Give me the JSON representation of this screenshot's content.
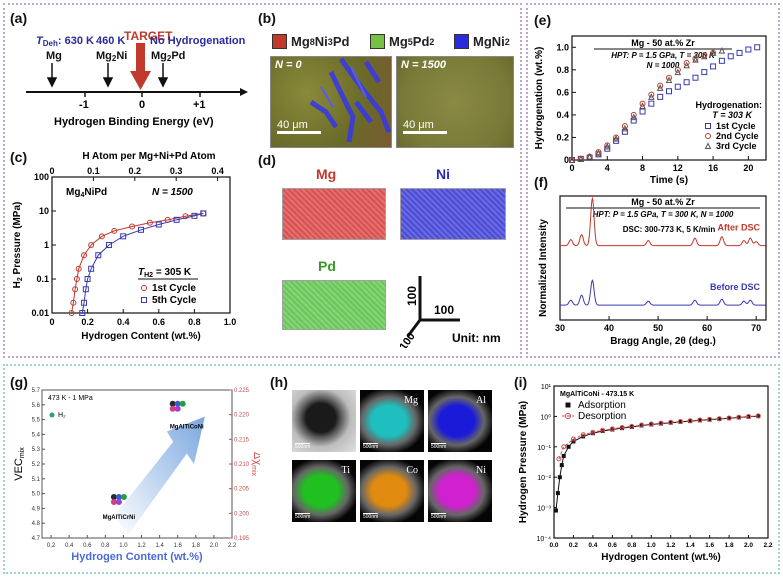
{
  "panel_labels": {
    "a": "(a)",
    "b": "(b)",
    "c": "(c)",
    "d": "(d)",
    "e": "(e)",
    "f": "(f)",
    "g": "(g)",
    "h": "(h)",
    "i": "(i)"
  },
  "panel_a": {
    "target": "TARGET",
    "tdeh_prefix": "T",
    "tdeh_sub": "Deh",
    "tdeh_value": ": 630 K",
    "temp2": "460 K",
    "no_hydrogenation": "No Hydrogenation",
    "compounds": [
      {
        "main": "Mg",
        "sub": "",
        "tail": ""
      },
      {
        "main": "Mg",
        "sub": "2",
        "tail": "Ni"
      },
      {
        "main": "Mg",
        "sub": "2",
        "tail": "Pd"
      }
    ],
    "ticks": [
      "-1",
      "0",
      "+1"
    ],
    "axis_label": "Hydrogen Binding Energy (eV)"
  },
  "panel_b": {
    "legend": [
      {
        "parts": [
          "Mg",
          "8",
          "Ni",
          "3",
          "Pd"
        ],
        "color": "#c0392b"
      },
      {
        "parts": [
          "Mg",
          "5",
          "Pd",
          "2"
        ],
        "color": "#76c043"
      },
      {
        "parts": [
          "MgNi",
          "2"
        ],
        "color": "#2a2ae0"
      }
    ],
    "images": [
      {
        "label": "N = 0",
        "scale": "40 μm"
      },
      {
        "label": "N = 1500",
        "scale": "40 μm"
      }
    ]
  },
  "panel_c": {
    "top_axis_label": "H Atom per Mg+Ni+Pd Atom",
    "xlabel": "Hydrogen Content (wt.%)",
    "ylabel_main": "H",
    "ylabel_sub": "2",
    "ylabel_tail": " Pressure (MPa)",
    "alloy_main": "Mg",
    "alloy_sub": "4",
    "alloy_tail": "NiPd",
    "n_label": "N = 1500",
    "temp_label_main": "T",
    "temp_label_sub": "H2",
    "temp_label_tail": " = 305 K",
    "legend": [
      "1st Cycle",
      "5th Cycle"
    ]
  },
  "panel_d": {
    "elements": [
      {
        "name": "Mg",
        "color": "#d9443f"
      },
      {
        "name": "Ni",
        "color": "#3a3ad6"
      },
      {
        "name": "Pd",
        "color": "#4aaa3a"
      }
    ],
    "axis_values": [
      "100",
      "100",
      "100"
    ],
    "unit": "Unit: nm"
  },
  "panel_e": {
    "title_line1": "Mg - 50 at.% Zr",
    "title_line2": "HPT: P = 1.5 GPa, T = 300 K",
    "title_line3": "N = 1000",
    "legend_title1": "Hydrogenation:",
    "legend_title2": "T = 303 K",
    "legend": [
      "1st Cycle",
      "2nd Cycle",
      "3rd Cycle"
    ],
    "xlabel": "Time (s)",
    "ylabel": "Hydrogenation (wt.%)"
  },
  "panel_f": {
    "title_line1": "Mg - 50 at.% Zr",
    "title_line2": "HPT: P = 1.5 GPa, T = 300 K, N = 1000",
    "dsc_label": "DSC: 300-773 K, 5 K/min",
    "after_label": "After DSC",
    "before_label": "Before DSC",
    "xlabel": "Bragg Angle, 2θ (deg.)",
    "ylabel": "Normalized Intensity"
  },
  "panel_g": {
    "condition": "473 K - 1 MPa",
    "legend": "H₂",
    "ylabel_left": "VEC",
    "ylabel_left_sub": "mix",
    "ylabel_right": "Δχ",
    "ylabel_right_sub": "mix",
    "xlabel": "Hydrogen Content (wt.%)",
    "label_low": "MgAlTiCrNi",
    "label_high": "MgAlTiCoNi"
  },
  "panel_h": {
    "maps": [
      {
        "label": "",
        "color": "#cfcfcf"
      },
      {
        "label": "Mg",
        "color": "#1fbfbf"
      },
      {
        "label": "Al",
        "color": "#1a1ad8"
      },
      {
        "label": "Ti",
        "color": "#20c020"
      },
      {
        "label": "Co",
        "color": "#e08a10"
      },
      {
        "label": "Ni",
        "color": "#d020d0"
      }
    ],
    "scale": "500nm"
  },
  "panel_i": {
    "condition": "MgAlTiCoNi - 473.15 K",
    "legend": [
      "Adsorption",
      "Desorption"
    ],
    "xlabel": "Hydrogen Content (wt.%)",
    "ylabel": "Hydrogen Pressure (MPa)"
  },
  "chart_data": [
    {
      "type": "line",
      "panel": "c",
      "x_scale": "linear",
      "y_scale": "log",
      "xlim": [
        0,
        1.0
      ],
      "ylim": [
        0.01,
        100
      ],
      "x_ticks": [
        "0",
        "0.2",
        "0.4",
        "0.6",
        "0.8",
        "1.0"
      ],
      "y_ticks": [
        "0.01",
        "0.1",
        "1",
        "10",
        "100"
      ],
      "top_ticks": [
        "0",
        "0.1",
        "0.2",
        "0.3",
        "0.4"
      ],
      "series": [
        {
          "name": "1st Cycle",
          "color": "#c0392b",
          "marker": "circle",
          "x": [
            0.11,
            0.12,
            0.13,
            0.14,
            0.15,
            0.18,
            0.22,
            0.28,
            0.35,
            0.45,
            0.55,
            0.65,
            0.75,
            0.85
          ],
          "y": [
            0.01,
            0.02,
            0.05,
            0.1,
            0.2,
            0.5,
            1.0,
            1.8,
            2.6,
            3.5,
            4.5,
            5.5,
            7.0,
            8.5
          ]
        },
        {
          "name": "5th Cycle",
          "color": "#3a3ab0",
          "marker": "square",
          "x": [
            0.17,
            0.18,
            0.19,
            0.2,
            0.22,
            0.26,
            0.32,
            0.4,
            0.5,
            0.6,
            0.7,
            0.8,
            0.85
          ],
          "y": [
            0.01,
            0.02,
            0.05,
            0.1,
            0.2,
            0.5,
            1.0,
            1.8,
            2.8,
            4.0,
            5.5,
            7.2,
            8.5
          ]
        }
      ]
    },
    {
      "type": "scatter",
      "panel": "e",
      "xlim": [
        0,
        22
      ],
      "ylim": [
        0,
        1.1
      ],
      "x_ticks": [
        "0",
        "4",
        "8",
        "12",
        "16",
        "20"
      ],
      "y_ticks": [
        "0",
        "0.2",
        "0.4",
        "0.6",
        "0.8",
        "1.0"
      ],
      "series": [
        {
          "name": "1st Cycle",
          "color": "#3a3ab0",
          "marker": "square",
          "x": [
            0,
            1,
            2,
            3,
            4,
            5,
            6,
            7,
            8,
            9,
            10,
            11,
            12,
            13,
            14,
            15,
            16,
            17,
            18,
            19,
            20,
            21
          ],
          "y": [
            0,
            0.01,
            0.02,
            0.05,
            0.1,
            0.17,
            0.25,
            0.35,
            0.43,
            0.5,
            0.56,
            0.61,
            0.65,
            0.69,
            0.73,
            0.78,
            0.83,
            0.88,
            0.92,
            0.95,
            0.98,
            1.0
          ]
        },
        {
          "name": "2nd Cycle",
          "color": "#c0392b",
          "marker": "circle",
          "x": [
            0,
            1,
            2,
            3,
            4,
            5,
            6,
            7,
            8,
            9,
            10,
            11,
            12,
            13,
            14,
            15,
            16
          ],
          "y": [
            0,
            0.01,
            0.03,
            0.07,
            0.13,
            0.2,
            0.3,
            0.4,
            0.5,
            0.58,
            0.66,
            0.73,
            0.8,
            0.86,
            0.9,
            0.93,
            0.95
          ]
        },
        {
          "name": "3rd Cycle",
          "color": "#555555",
          "marker": "triangle",
          "x": [
            0,
            1,
            2,
            3,
            4,
            5,
            6,
            7,
            8,
            9,
            10,
            11,
            12,
            13,
            14,
            15,
            16,
            17
          ],
          "y": [
            0,
            0.01,
            0.03,
            0.06,
            0.12,
            0.19,
            0.28,
            0.38,
            0.48,
            0.56,
            0.64,
            0.71,
            0.78,
            0.84,
            0.89,
            0.92,
            0.95,
            0.97
          ]
        }
      ]
    },
    {
      "type": "line",
      "panel": "f",
      "xlim": [
        30,
        72
      ],
      "ylim": [
        0,
        1
      ],
      "x_ticks": [
        "30",
        "40",
        "50",
        "60",
        "70"
      ],
      "series": [
        {
          "name": "After DSC",
          "color": "#c0392b",
          "peaks": [
            32.2,
            34.4,
            36.6,
            48.0,
            57.5,
            63.0,
            67.5,
            68.8,
            70.0
          ],
          "heights": [
            0.12,
            0.22,
            0.95,
            0.1,
            0.15,
            0.18,
            0.1,
            0.15,
            0.08
          ],
          "baseline": 0.6
        },
        {
          "name": "Before DSC",
          "color": "#3a3ab0",
          "peaks": [
            32.2,
            34.4,
            36.6,
            48.0,
            57.5,
            63.0,
            67.5,
            68.8
          ],
          "heights": [
            0.1,
            0.2,
            0.5,
            0.08,
            0.1,
            0.12,
            0.08,
            0.1
          ],
          "baseline": 0.12
        }
      ]
    },
    {
      "type": "scatter",
      "panel": "g",
      "xlim": [
        0.1,
        2.2
      ],
      "ylim": [
        4.7,
        5.7
      ],
      "y2lim": [
        0.195,
        0.225
      ],
      "x_ticks": [
        "0.2",
        "0.4",
        "0.6",
        "0.8",
        "1.0",
        "1.2",
        "1.4",
        "1.6",
        "1.8",
        "2.0",
        "2.2"
      ],
      "y_ticks": [
        "4.7",
        "4.8",
        "4.9",
        "5.0",
        "5.1",
        "5.2",
        "5.3",
        "5.4",
        "5.5",
        "5.6",
        "5.7"
      ],
      "y2_ticks": [
        "0.195",
        "0.200",
        "0.205",
        "0.210",
        "0.215",
        "0.220",
        "0.225"
      ]
    },
    {
      "type": "scatter",
      "panel": "i",
      "y_scale": "log",
      "xlim": [
        0,
        2.2
      ],
      "ylim": [
        0.0001,
        10.0
      ],
      "x_ticks": [
        "0.0",
        "0.2",
        "0.4",
        "0.6",
        "0.8",
        "1.0",
        "1.2",
        "1.4",
        "1.6",
        "1.8",
        "2.0",
        "2.2"
      ],
      "y_ticks": [
        "10⁻⁴",
        "10⁻³",
        "10⁻²",
        "10⁻¹",
        "10⁰",
        "10¹"
      ],
      "series": [
        {
          "name": "Adsorption",
          "color": "#111111",
          "marker": "square",
          "x": [
            0.02,
            0.04,
            0.06,
            0.08,
            0.1,
            0.15,
            0.2,
            0.3,
            0.4,
            0.5,
            0.6,
            0.7,
            0.8,
            0.9,
            1.0,
            1.1,
            1.2,
            1.3,
            1.4,
            1.5,
            1.6,
            1.7,
            1.8,
            1.9,
            2.0,
            2.1
          ],
          "y": [
            0.0008,
            0.003,
            0.01,
            0.025,
            0.05,
            0.1,
            0.15,
            0.22,
            0.28,
            0.33,
            0.37,
            0.41,
            0.45,
            0.5,
            0.54,
            0.58,
            0.62,
            0.66,
            0.7,
            0.74,
            0.78,
            0.82,
            0.87,
            0.92,
            0.97,
            1.02
          ]
        },
        {
          "name": "Desorption",
          "color": "#d05050",
          "marker": "circle",
          "x": [
            0.05,
            0.1,
            0.2,
            0.3,
            0.4,
            0.5,
            0.6,
            0.7,
            0.8,
            0.9,
            1.0,
            1.1,
            1.2,
            1.3,
            1.4,
            1.5,
            1.6,
            1.7,
            1.8,
            1.9,
            2.0,
            2.1
          ],
          "y": [
            0.04,
            0.1,
            0.18,
            0.25,
            0.3,
            0.35,
            0.39,
            0.43,
            0.47,
            0.52,
            0.56,
            0.6,
            0.64,
            0.68,
            0.72,
            0.76,
            0.8,
            0.84,
            0.89,
            0.94,
            0.99,
            1.04
          ]
        }
      ]
    }
  ]
}
